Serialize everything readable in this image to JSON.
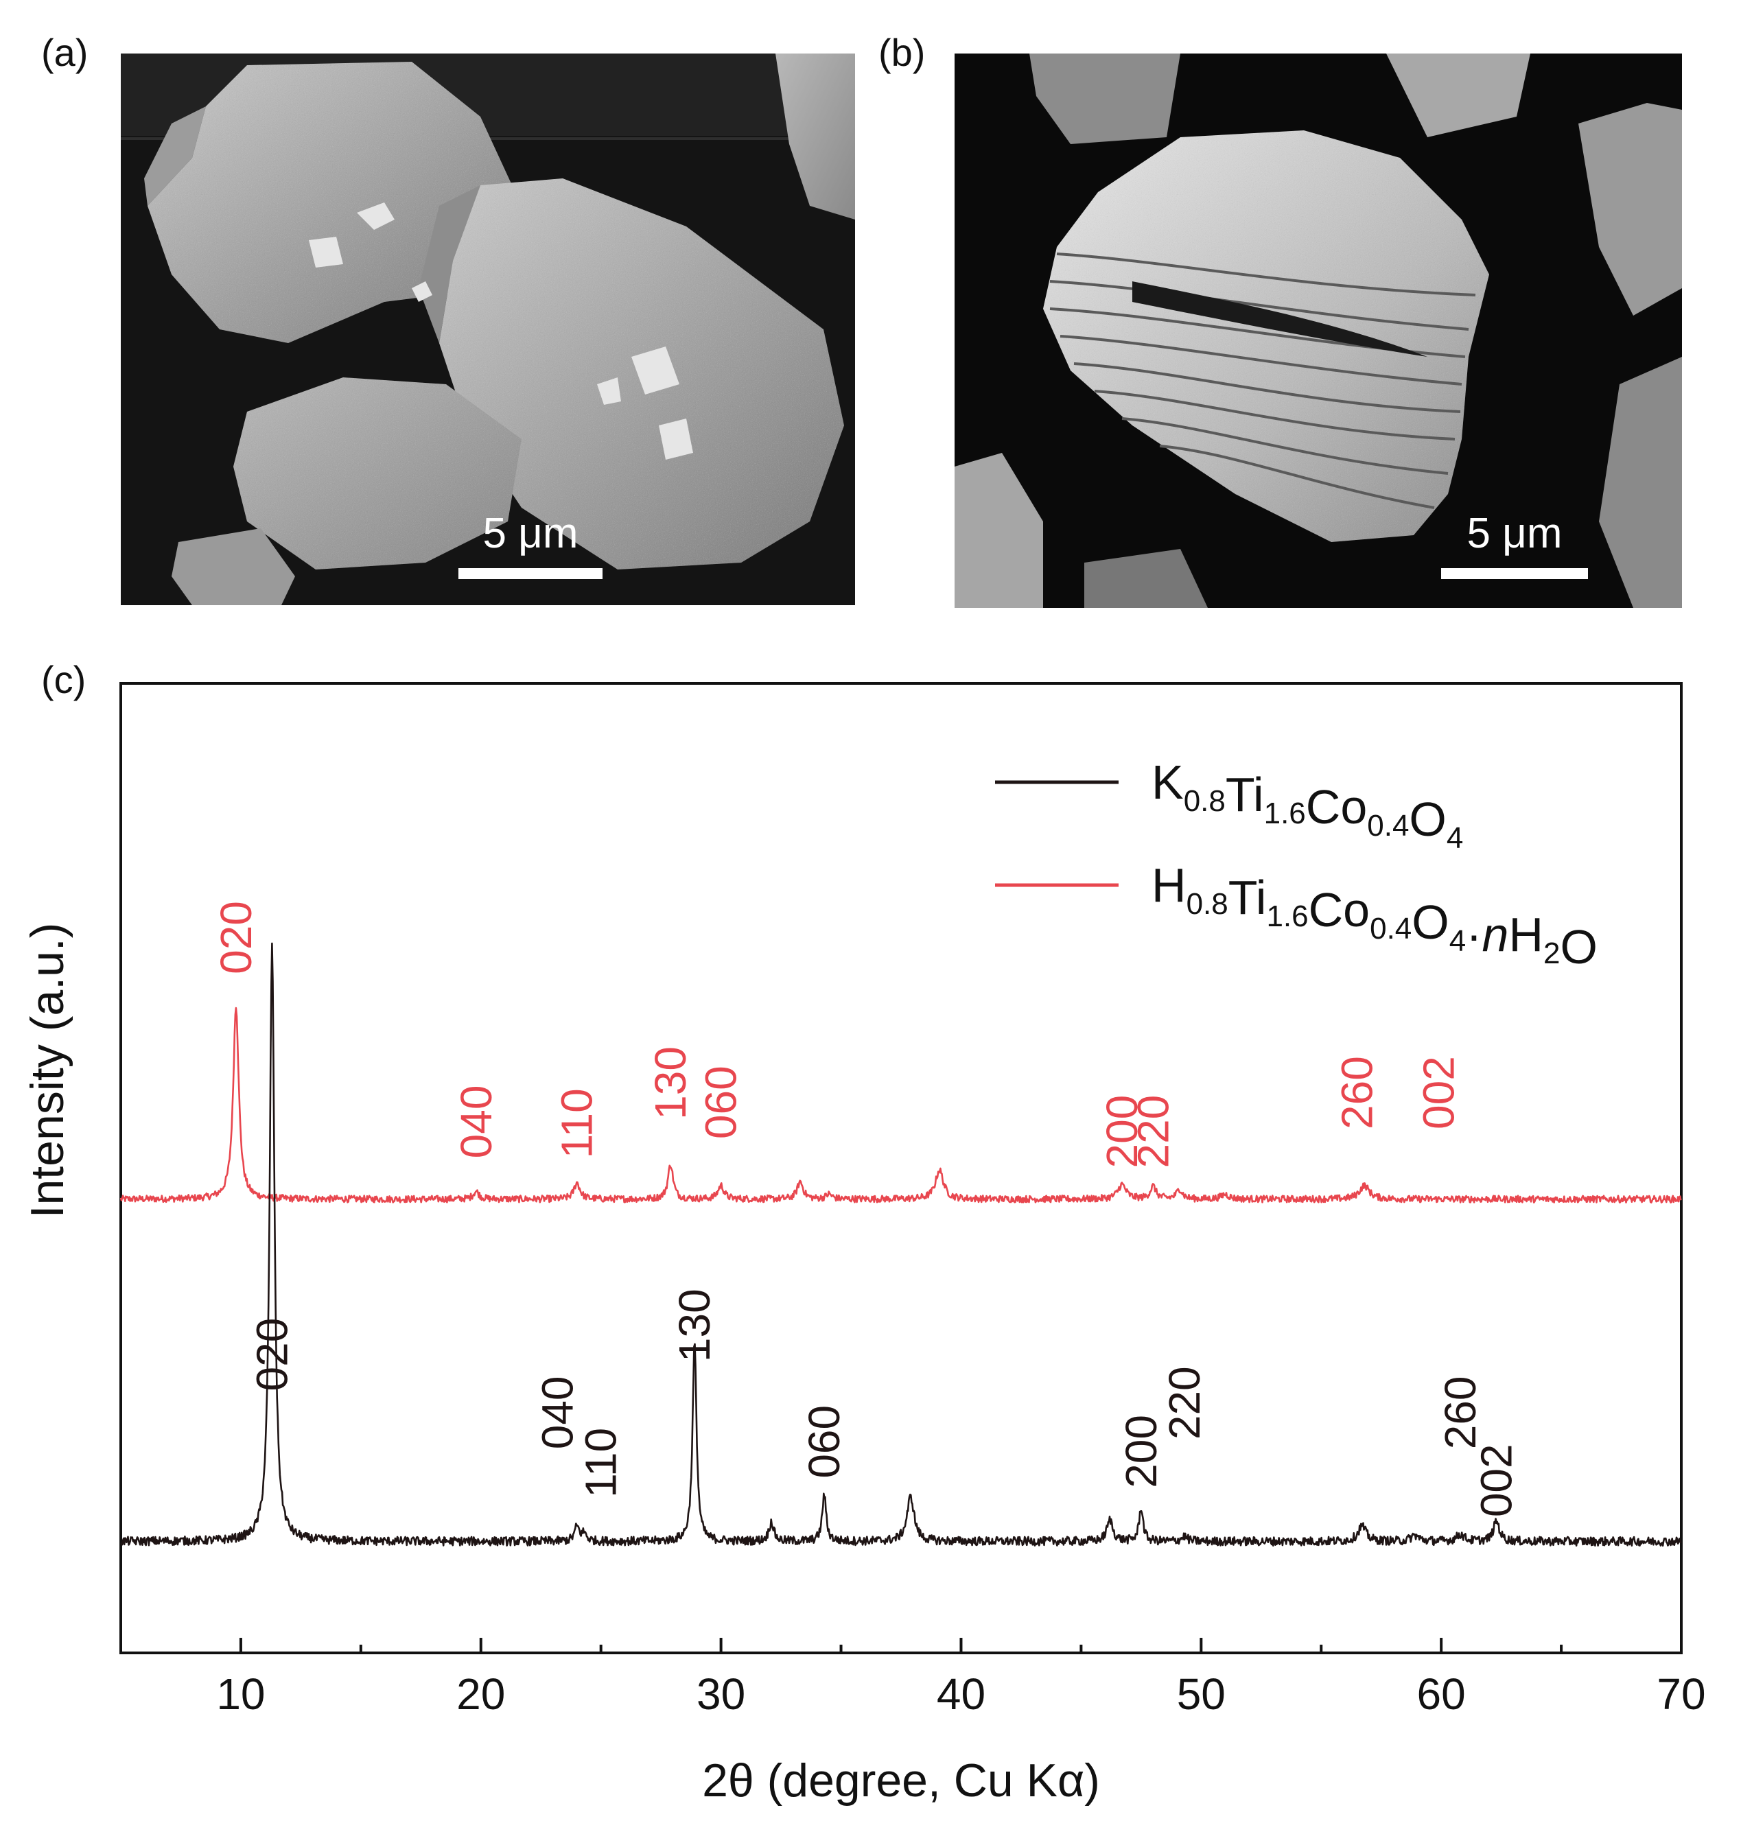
{
  "figure": {
    "panels": [
      {
        "label": "(a)",
        "scale_bar": "5 μm",
        "kind": "sem-image",
        "subject": "compact-crystals"
      },
      {
        "label": "(b)",
        "scale_bar": "5 μm",
        "kind": "sem-image",
        "subject": "layered-crystal"
      },
      {
        "label": "(c)",
        "kind": "xrd-chart"
      }
    ]
  },
  "colors": {
    "black_series": "#1e1414",
    "red_series": "#e8464e",
    "axis": "#111111"
  },
  "chart_data": {
    "type": "line",
    "title": "",
    "xlabel": "2θ (degree, Cu Kα)",
    "ylabel": "Intensity (a.u.)",
    "xlim": [
      5,
      70
    ],
    "ylim": [
      0,
      100
    ],
    "x_ticks": [
      10,
      20,
      30,
      40,
      50,
      60,
      70
    ],
    "y_ticks_shown": false,
    "grid": false,
    "legend_position": "top-right",
    "series": [
      {
        "name": "K0.8Ti1.6Co0.4O4",
        "name_parts": [
          [
            "K",
            ""
          ],
          [
            "0.8",
            "sub"
          ],
          [
            "Ti",
            ""
          ],
          [
            "1.6",
            "sub"
          ],
          [
            "Co",
            ""
          ],
          [
            "0.4",
            "sub"
          ],
          [
            "O",
            ""
          ],
          [
            "4",
            "sub"
          ]
        ],
        "color": "#1e1414",
        "baseline": 11.5,
        "noise": 0.45,
        "peaks": [
          {
            "x": 11.3,
            "h": 61.5,
            "w": 0.12,
            "hkl": "020",
            "label_y": 27
          },
          {
            "x": 24.0,
            "h": 1.5,
            "w": 0.12,
            "hkl": "040",
            "label_y": 21,
            "label_dx": -0.8
          },
          {
            "x": 24.3,
            "h": 0.8,
            "w": 0.12,
            "hkl": "110",
            "label_y": 16,
            "label_dx": 0.7
          },
          {
            "x": 28.9,
            "h": 20.5,
            "w": 0.1,
            "hkl": "130",
            "label_y": 30
          },
          {
            "x": 32.1,
            "h": 2.0,
            "w": 0.12
          },
          {
            "x": 34.3,
            "h": 4.8,
            "w": 0.1,
            "hkl": "060",
            "label_y": 18
          },
          {
            "x": 37.9,
            "h": 4.6,
            "w": 0.18
          },
          {
            "x": 46.2,
            "h": 2.2,
            "w": 0.15
          },
          {
            "x": 47.5,
            "h": 3.5,
            "w": 0.1,
            "hkl": "200",
            "label_y": 17
          },
          {
            "x": 49.3,
            "h": 0.5,
            "w": 0.15,
            "hkl": "220",
            "label_y": 22
          },
          {
            "x": 56.7,
            "h": 1.6,
            "w": 0.2
          },
          {
            "x": 58.9,
            "h": 0.6,
            "w": 0.2
          },
          {
            "x": 60.8,
            "h": 0.7,
            "w": 0.2,
            "hkl": "260",
            "label_y": 21
          },
          {
            "x": 62.3,
            "h": 2.1,
            "w": 0.15,
            "hkl": "002",
            "label_y": 14
          }
        ]
      },
      {
        "name": "H0.8Ti1.6Co0.4O4·nH2O",
        "name_parts": [
          [
            "H",
            ""
          ],
          [
            "0.8",
            "sub"
          ],
          [
            "Ti",
            ""
          ],
          [
            "1.6",
            "sub"
          ],
          [
            "Co",
            ""
          ],
          [
            "0.4",
            "sub"
          ],
          [
            "O",
            ""
          ],
          [
            "4",
            "sub"
          ],
          [
            "·",
            ""
          ],
          [
            "n",
            "italic"
          ],
          [
            "H",
            ""
          ],
          [
            "2",
            "sub"
          ],
          [
            "O",
            ""
          ]
        ],
        "color": "#e8464e",
        "baseline": 46.8,
        "noise": 0.35,
        "peaks": [
          {
            "x": 9.8,
            "h": 20.0,
            "w": 0.14,
            "hkl": "020",
            "label_y": 70
          },
          {
            "x": 19.8,
            "h": 0.8,
            "w": 0.15,
            "hkl": "040",
            "label_y": 51
          },
          {
            "x": 24.0,
            "h": 1.7,
            "w": 0.15,
            "hkl": "110",
            "label_y": 51
          },
          {
            "x": 27.9,
            "h": 3.6,
            "w": 0.13,
            "hkl": "130",
            "label_y": 55
          },
          {
            "x": 30.0,
            "h": 1.4,
            "w": 0.15,
            "hkl": "060",
            "label_y": 53
          },
          {
            "x": 33.3,
            "h": 1.8,
            "w": 0.15
          },
          {
            "x": 34.5,
            "h": 0.5,
            "w": 0.15
          },
          {
            "x": 39.1,
            "h": 3.0,
            "w": 0.2
          },
          {
            "x": 46.7,
            "h": 1.5,
            "w": 0.2,
            "hkl": "200",
            "label_y": 50
          },
          {
            "x": 48.0,
            "h": 1.3,
            "w": 0.15,
            "hkl": "220",
            "label_y": 50
          },
          {
            "x": 49.1,
            "h": 1.0,
            "w": 0.15
          },
          {
            "x": 51.0,
            "h": 0.5,
            "w": 0.2
          },
          {
            "x": 56.8,
            "h": 1.4,
            "w": 0.25,
            "hkl": "260",
            "label_y": 54,
            "label_dx": -0.3
          },
          {
            "x": 59.7,
            "h": 0.0,
            "w": 0.2,
            "hkl": "002",
            "label_y": 54,
            "label_dx": 0.2
          }
        ]
      }
    ]
  }
}
